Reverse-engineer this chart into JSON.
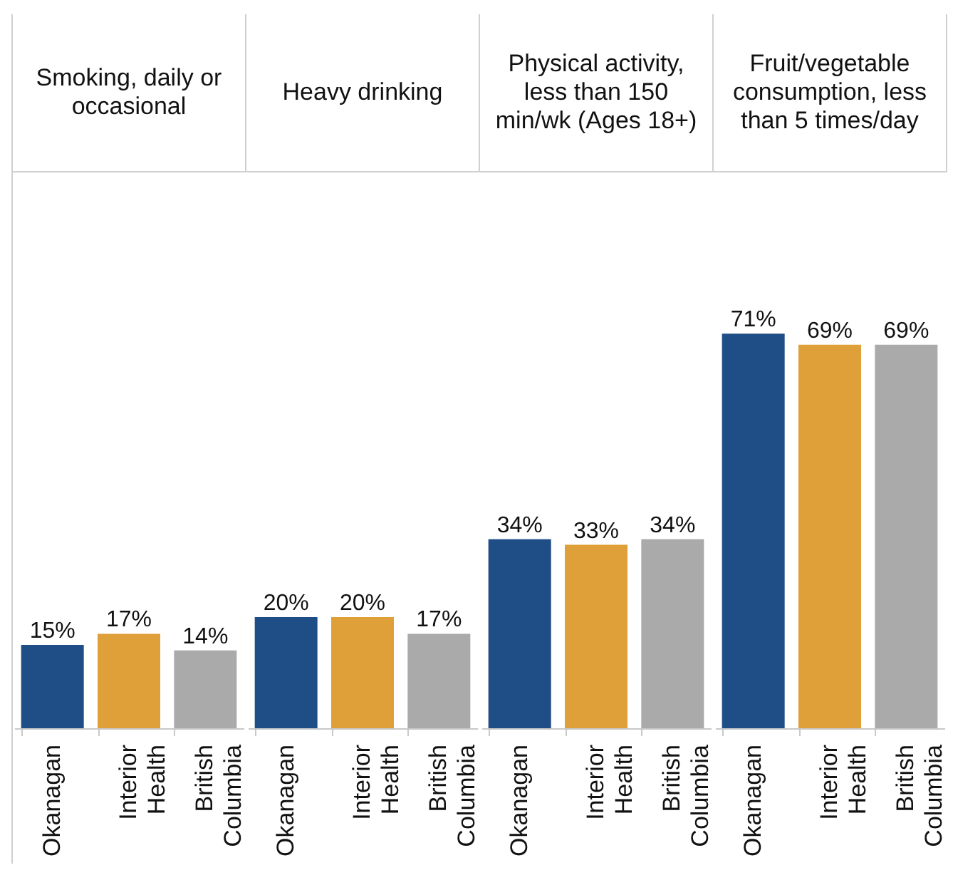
{
  "chart_data": [
    {
      "type": "bar",
      "title": "Smoking, daily or occasional",
      "categories": [
        "Okanagan",
        "Interior Health",
        "British Columbia"
      ],
      "values": [
        15,
        17,
        14
      ],
      "value_labels": [
        "15%",
        "17%",
        "14%"
      ],
      "colors": [
        "#1f4e87",
        "#dfa03a",
        "#aaaaaa"
      ],
      "ylim": [
        0,
        100
      ],
      "tick_labels": "x"
    },
    {
      "type": "bar",
      "title": "Heavy drinking",
      "categories": [
        "Okanagan",
        "Interior Health",
        "British Columbia"
      ],
      "values": [
        20,
        20,
        17
      ],
      "value_labels": [
        "20%",
        "20%",
        "17%"
      ],
      "colors": [
        "#1f4e87",
        "#dfa03a",
        "#aaaaaa"
      ],
      "ylim": [
        0,
        100
      ],
      "tick_labels": "x"
    },
    {
      "type": "bar",
      "title": "Physical activity, less than 150 min/wk (Ages 18+)",
      "categories": [
        "Okanagan",
        "Interior Health",
        "British Columbia"
      ],
      "values": [
        34,
        33,
        34
      ],
      "value_labels": [
        "34%",
        "33%",
        "34%"
      ],
      "colors": [
        "#1f4e87",
        "#dfa03a",
        "#aaaaaa"
      ],
      "ylim": [
        0,
        100
      ],
      "tick_labels": "x"
    },
    {
      "type": "bar",
      "title": "Fruit/vegetable consumption, less than 5 times/day",
      "categories": [
        "Okanagan",
        "Interior Health",
        "British Columbia"
      ],
      "values": [
        71,
        69,
        69
      ],
      "value_labels": [
        "71%",
        "69%",
        "69%"
      ],
      "colors": [
        "#1f4e87",
        "#dfa03a",
        "#aaaaaa"
      ],
      "ylim": [
        0,
        100
      ],
      "tick_labels": "x"
    }
  ]
}
